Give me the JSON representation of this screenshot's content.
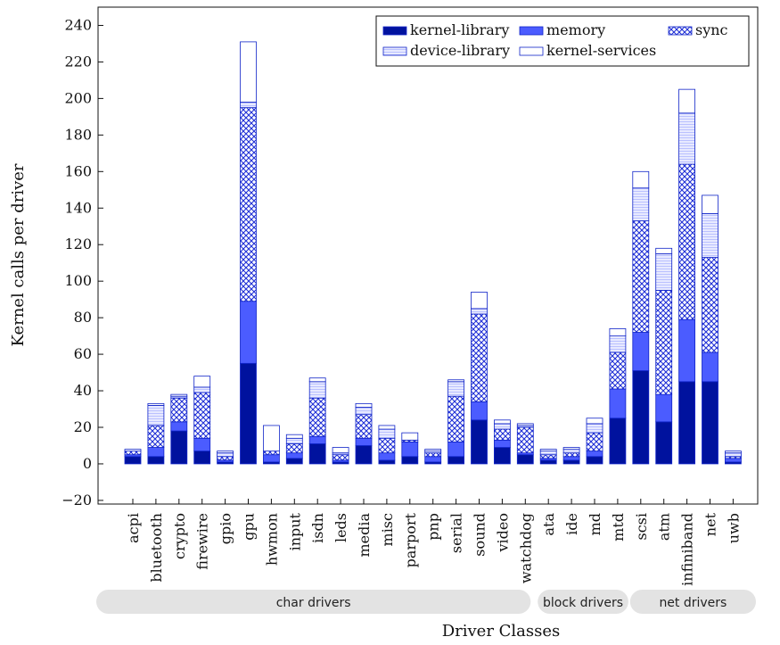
{
  "chart_data": {
    "type": "bar",
    "stacked": true,
    "xlabel": "Driver Classes",
    "ylabel": "Kernel calls per driver",
    "ylim": [
      -22,
      250
    ],
    "yticks": [
      -20,
      0,
      20,
      40,
      60,
      80,
      100,
      120,
      140,
      160,
      180,
      200,
      220,
      240
    ],
    "grid": false,
    "legend_position": "top-right",
    "categories": [
      "acpi",
      "bluetooth",
      "crypto",
      "firewire",
      "gpio",
      "gpu",
      "hwmon",
      "input",
      "isdn",
      "leds",
      "media",
      "misc",
      "parport",
      "pnp",
      "serial",
      "sound",
      "video",
      "watchdog",
      "ata",
      "ide",
      "md",
      "mtd",
      "scsi",
      "atm",
      "infiniband",
      "net",
      "uwb"
    ],
    "groups": [
      {
        "label": "char drivers",
        "start": 0,
        "end": 17
      },
      {
        "label": "block drivers",
        "start": 18,
        "end": 21
      },
      {
        "label": "net drivers",
        "start": 22,
        "end": 26
      }
    ],
    "series": [
      {
        "name": "kernel-library",
        "color": "#00129e",
        "pattern": "solid-dark",
        "values": [
          4,
          4,
          18,
          7,
          1,
          55,
          1,
          3,
          11,
          1,
          10,
          2,
          4,
          1,
          4,
          24,
          9,
          5,
          2,
          2,
          4,
          25,
          51,
          23,
          45,
          45,
          1
        ]
      },
      {
        "name": "memory",
        "color": "#4b5cff",
        "pattern": "solid-light",
        "values": [
          1,
          5,
          5,
          7,
          1,
          34,
          4,
          3,
          4,
          1,
          4,
          4,
          8,
          3,
          8,
          10,
          4,
          1,
          1,
          2,
          3,
          16,
          21,
          15,
          34,
          16,
          2
        ]
      },
      {
        "name": "sync",
        "color": "#2233d8",
        "pattern": "crosshatch",
        "values": [
          2,
          12,
          13,
          25,
          2,
          106,
          2,
          5,
          21,
          3,
          13,
          8,
          1,
          2,
          25,
          48,
          6,
          14,
          2,
          2,
          10,
          20,
          61,
          57,
          85,
          52,
          1
        ]
      },
      {
        "name": "device-library",
        "color": "#cfd4ff",
        "pattern": "lines",
        "values": [
          0,
          11,
          1,
          3,
          2,
          3,
          0,
          3,
          9,
          1,
          4,
          5,
          0,
          1,
          8,
          3,
          3,
          1,
          2,
          2,
          5,
          9,
          18,
          20,
          28,
          24,
          2
        ]
      },
      {
        "name": "kernel-services",
        "color": "#ffffff",
        "pattern": "white",
        "values": [
          1,
          1,
          1,
          6,
          1,
          33,
          14,
          2,
          2,
          3,
          2,
          2,
          4,
          1,
          1,
          9,
          2,
          1,
          1,
          1,
          3,
          4,
          9,
          3,
          13,
          10,
          1
        ]
      }
    ]
  }
}
